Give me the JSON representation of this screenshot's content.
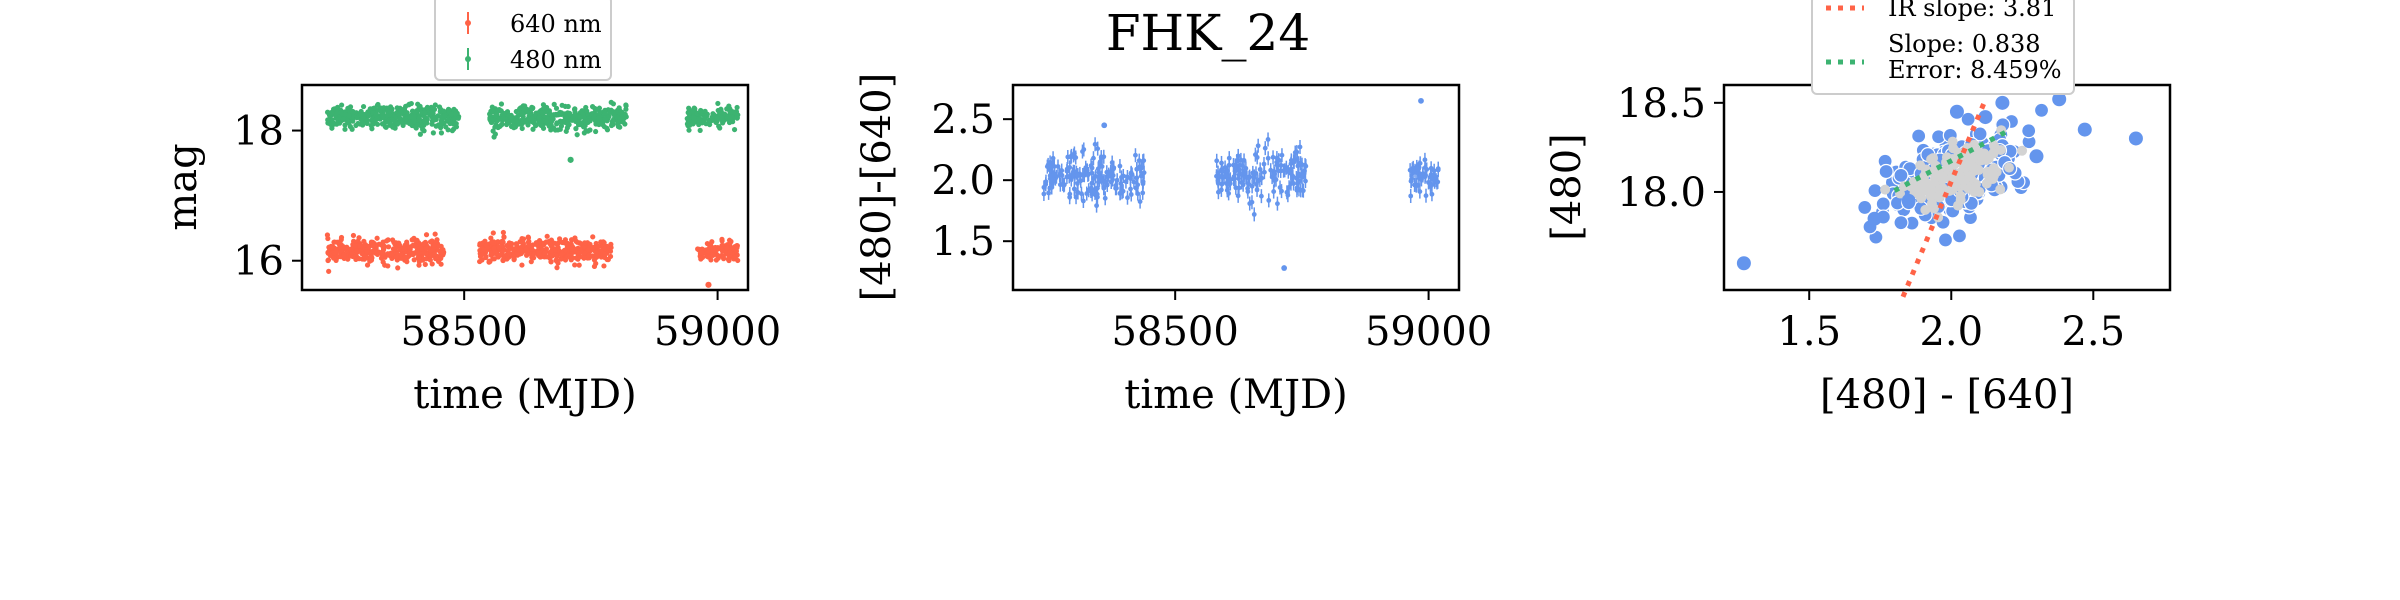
{
  "title": "FHK_24",
  "colors": {
    "r640": "#ff6347",
    "g480": "#3cb371",
    "color": "#6495ed",
    "fill": "#d3d3d3",
    "ir": "#ff6347",
    "slope": "#3cb371"
  },
  "chart_data": [
    {
      "type": "scatter",
      "panel": "light-curves",
      "xlabel": "time (MJD)",
      "ylabel": "mag",
      "xlim": [
        58180,
        59060
      ],
      "ylim": [
        18.7,
        15.55
      ],
      "xticks": [
        58500,
        59000
      ],
      "yticks": [
        16,
        18
      ],
      "legend_position": "top-center",
      "series": [
        {
          "name": "640 nm",
          "color": "#ff6347",
          "median": 16.15,
          "segments": [
            [
              58230,
              58460,
              0.09
            ],
            [
              58530,
              58790,
              0.09
            ],
            [
              58960,
              59040,
              0.07
            ]
          ],
          "outliers": [
            [
              58982,
              15.63
            ]
          ]
        },
        {
          "name": "480 nm",
          "color": "#3cb371",
          "median": 18.2,
          "segments": [
            [
              58230,
              58490,
              0.09
            ],
            [
              58550,
              58820,
              0.09
            ],
            [
              58940,
              59040,
              0.08
            ]
          ],
          "outliers": [
            [
              58710,
              17.55
            ]
          ]
        }
      ]
    },
    {
      "type": "scatter",
      "panel": "color-curve",
      "xlabel": "time (MJD)",
      "ylabel": "[480]-[640]",
      "xlim": [
        58180,
        59060
      ],
      "ylim": [
        2.78,
        1.1
      ],
      "xticks": [
        58500,
        59000
      ],
      "yticks": [
        1.5,
        2.0,
        2.5
      ],
      "series": [
        {
          "color": "#6495ed",
          "median": 2.02,
          "segments": [
            [
              58240,
              58440,
              0.11
            ],
            [
              58580,
              58760,
              0.1
            ],
            [
              58960,
              59020,
              0.08
            ]
          ],
          "outliers": [
            [
              58715,
              1.28
            ],
            [
              58985,
              2.65
            ],
            [
              58360,
              2.45
            ]
          ]
        }
      ]
    },
    {
      "type": "scatter",
      "panel": "color-magnitude",
      "xlabel": "[480] - [640]",
      "ylabel": "[480]",
      "xlim": [
        1.2,
        2.77
      ],
      "ylim": [
        18.6,
        17.45
      ],
      "xticks": [
        1.5,
        2.0,
        2.5
      ],
      "yticks": [
        18.0,
        18.5
      ],
      "legend_position": "top-center",
      "points": [
        [
          1.27,
          17.6
        ],
        [
          1.73,
          17.85
        ],
        [
          2.65,
          18.3
        ],
        [
          2.47,
          18.35
        ],
        [
          2.38,
          18.52
        ],
        [
          2.18,
          18.5
        ],
        [
          2.3,
          18.2
        ],
        [
          1.85,
          17.95
        ],
        [
          2.12,
          18.42
        ],
        [
          2.02,
          18.45
        ]
      ],
      "cloud": {
        "cx": 2.02,
        "cy": 18.1,
        "sx": 0.12,
        "sy": 0.13,
        "n": 260
      },
      "ir_line": {
        "label": "IR slope: 3.81",
        "slope": 3.81,
        "x0": 2.05,
        "y0": 18.25,
        "x_range": [
          1.83,
          2.12
        ]
      },
      "fit_line": {
        "label": "Slope: 0.838",
        "error_label": "Error: 8.459%",
        "slope": 0.838,
        "x0": 1.97,
        "y0": 18.15,
        "x_range": [
          1.8,
          2.2
        ]
      }
    }
  ]
}
